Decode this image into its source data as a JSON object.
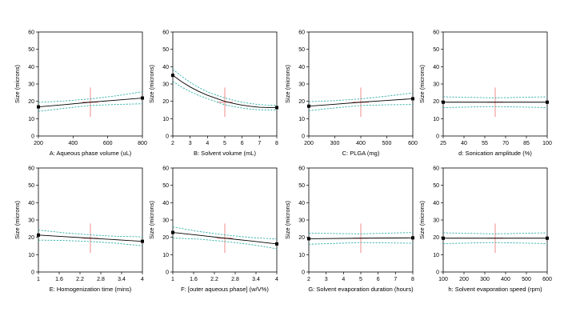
{
  "colors": {
    "fit": "#000000",
    "ci": "#2fb0a8",
    "crosshair": "#f08080",
    "dot": "#000000",
    "axis": "#000000"
  },
  "chart_data": [
    {
      "type": "line",
      "xlabel": "A: Aqueous phase volume (uL)",
      "ylabel": "Size (microns)",
      "xlim": [
        200,
        800
      ],
      "ylim": [
        0,
        60
      ],
      "xticks": [
        "200",
        "400",
        "600",
        "800"
      ],
      "yticks": [
        "0",
        "10",
        "20",
        "30",
        "40",
        "50",
        "60"
      ],
      "center_x": 500,
      "center_y": 19.5,
      "series": [
        {
          "x": [
            200,
            350,
            500,
            650,
            800
          ],
          "y": [
            16.8,
            18.1,
            19.5,
            20.7,
            21.9
          ]
        },
        {
          "x": [
            200,
            350,
            500,
            650,
            800
          ],
          "y": [
            19.4,
            20.2,
            21.4,
            23.2,
            25.5
          ]
        },
        {
          "x": [
            200,
            350,
            500,
            650,
            800
          ],
          "y": [
            14.2,
            16.0,
            17.6,
            18.2,
            18.6
          ]
        }
      ],
      "endpoints": {
        "x": [
          200,
          800
        ],
        "y": [
          16.8,
          21.9
        ]
      }
    },
    {
      "type": "line",
      "xlabel": "B: Solvent volume (mL)",
      "ylabel": "Size (microns)",
      "xlim": [
        2,
        8
      ],
      "ylim": [
        0,
        60
      ],
      "xticks": [
        "2",
        "3",
        "4",
        "5",
        "6",
        "7",
        "8"
      ],
      "yticks": [
        "0",
        "10",
        "20",
        "30",
        "40",
        "50",
        "60"
      ],
      "center_x": 5,
      "center_y": 19.5,
      "series": [
        {
          "x": [
            2,
            2.5,
            3,
            3.5,
            4,
            4.5,
            5,
            5.5,
            6,
            6.5,
            7,
            7.5,
            8
          ],
          "y": [
            35.0,
            31.4,
            28.3,
            25.7,
            23.5,
            21.7,
            20.0,
            18.8,
            17.8,
            17.1,
            16.6,
            16.4,
            16.4
          ]
        },
        {
          "x": [
            2,
            2.5,
            3,
            3.5,
            4,
            4.5,
            5,
            5.5,
            6,
            6.5,
            7,
            7.5,
            8
          ],
          "y": [
            38.5,
            34.5,
            31.0,
            28.0,
            25.5,
            23.6,
            22.0,
            20.6,
            19.5,
            18.7,
            18.1,
            17.8,
            17.7
          ]
        },
        {
          "x": [
            2,
            2.5,
            3,
            3.5,
            4,
            4.5,
            5,
            5.5,
            6,
            6.5,
            7,
            7.5,
            8
          ],
          "y": [
            31.5,
            28.3,
            25.6,
            23.4,
            21.5,
            19.8,
            18.0,
            17.0,
            16.1,
            15.5,
            15.1,
            15.0,
            15.1
          ]
        }
      ],
      "endpoints": {
        "x": [
          2,
          8
        ],
        "y": [
          35.0,
          16.4
        ]
      }
    },
    {
      "type": "line",
      "xlabel": "C: PLGA (mg)",
      "ylabel": "Size (microns)",
      "xlim": [
        200,
        600
      ],
      "ylim": [
        0,
        60
      ],
      "xticks": [
        "200",
        "300",
        "400",
        "500",
        "600"
      ],
      "yticks": [
        "0",
        "10",
        "20",
        "30",
        "40",
        "50",
        "60"
      ],
      "center_x": 400,
      "center_y": 19.5,
      "series": [
        {
          "x": [
            200,
            300,
            400,
            500,
            600
          ],
          "y": [
            17.2,
            18.3,
            19.5,
            20.5,
            21.5
          ]
        },
        {
          "x": [
            200,
            300,
            400,
            500,
            600
          ],
          "y": [
            19.8,
            20.4,
            21.4,
            23.0,
            24.8
          ]
        },
        {
          "x": [
            200,
            300,
            400,
            500,
            600
          ],
          "y": [
            14.6,
            16.2,
            17.6,
            18.0,
            18.2
          ]
        }
      ],
      "endpoints": {
        "x": [
          200,
          600
        ],
        "y": [
          17.2,
          21.5
        ]
      }
    },
    {
      "type": "line",
      "xlabel": "d: Sonication amplitude (%)",
      "ylabel": "Size (microns)",
      "xlim": [
        25,
        100
      ],
      "ylim": [
        0,
        60
      ],
      "xticks": [
        "25",
        "40",
        "55",
        "70",
        "85",
        "100"
      ],
      "yticks": [
        "0",
        "10",
        "20",
        "30",
        "40",
        "50",
        "60"
      ],
      "center_x": 62.5,
      "center_y": 19.5,
      "series": [
        {
          "x": [
            25,
            62.5,
            100
          ],
          "y": [
            19.5,
            19.5,
            19.5
          ]
        },
        {
          "x": [
            25,
            62.5,
            100
          ],
          "y": [
            22.6,
            22.0,
            22.6
          ]
        },
        {
          "x": [
            25,
            62.5,
            100
          ],
          "y": [
            16.4,
            17.0,
            16.4
          ]
        }
      ],
      "endpoints": {
        "x": [
          25,
          100
        ],
        "y": [
          19.5,
          19.5
        ]
      }
    },
    {
      "type": "line",
      "xlabel": "E: Homogenization time (mins)",
      "ylabel": "Size (microns)",
      "xlim": [
        1,
        4
      ],
      "ylim": [
        0,
        60
      ],
      "xticks": [
        "1",
        "1.6",
        "2.2",
        "2.8",
        "3.4",
        "4"
      ],
      "yticks": [
        "0",
        "10",
        "20",
        "30",
        "40",
        "50",
        "60"
      ],
      "center_x": 2.5,
      "center_y": 19.5,
      "series": [
        {
          "x": [
            1,
            1.75,
            2.5,
            3.25,
            4
          ],
          "y": [
            21.3,
            20.4,
            19.5,
            18.6,
            17.7
          ]
        },
        {
          "x": [
            1,
            1.75,
            2.5,
            3.25,
            4
          ],
          "y": [
            24.2,
            22.6,
            21.4,
            20.6,
            20.3
          ]
        },
        {
          "x": [
            1,
            1.75,
            2.5,
            3.25,
            4
          ],
          "y": [
            18.4,
            18.2,
            17.6,
            16.6,
            15.1
          ]
        }
      ],
      "endpoints": {
        "x": [
          1,
          4
        ],
        "y": [
          21.3,
          17.7
        ]
      }
    },
    {
      "type": "line",
      "xlabel": "F: [outer aqueous phase] (w/V%)",
      "ylabel": "Size (microns)",
      "xlim": [
        1,
        4
      ],
      "ylim": [
        0,
        60
      ],
      "xticks": [
        "1",
        "1.6",
        "2.2",
        "2.8",
        "3.4",
        "4"
      ],
      "yticks": [
        "0",
        "10",
        "20",
        "30",
        "40",
        "50",
        "60"
      ],
      "center_x": 2.5,
      "center_y": 19.5,
      "series": [
        {
          "x": [
            1,
            1.75,
            2.5,
            3.25,
            4
          ],
          "y": [
            22.8,
            21.2,
            19.5,
            17.9,
            16.2
          ]
        },
        {
          "x": [
            1,
            1.75,
            2.5,
            3.25,
            4
          ],
          "y": [
            26.0,
            23.4,
            21.4,
            19.9,
            19.0
          ]
        },
        {
          "x": [
            1,
            1.75,
            2.5,
            3.25,
            4
          ],
          "y": [
            19.6,
            19.0,
            17.6,
            15.9,
            13.4
          ]
        }
      ],
      "endpoints": {
        "x": [
          1,
          4
        ],
        "y": [
          22.8,
          16.2
        ]
      }
    },
    {
      "type": "line",
      "xlabel": "G: Solvent evaporation duration (hours)",
      "ylabel": "Size (microns)",
      "xlim": [
        2,
        8
      ],
      "ylim": [
        0,
        60
      ],
      "xticks": [
        "2",
        "3",
        "4",
        "5",
        "6",
        "7",
        "8"
      ],
      "yticks": [
        "0",
        "10",
        "20",
        "30",
        "40",
        "50",
        "60"
      ],
      "center_x": 5,
      "center_y": 19.5,
      "series": [
        {
          "x": [
            2,
            5,
            8
          ],
          "y": [
            19.2,
            19.5,
            19.7
          ]
        },
        {
          "x": [
            2,
            5,
            8
          ],
          "y": [
            22.4,
            22.0,
            22.8
          ]
        },
        {
          "x": [
            2,
            5,
            8
          ],
          "y": [
            16.0,
            17.0,
            16.6
          ]
        }
      ],
      "endpoints": {
        "x": [
          2,
          8
        ],
        "y": [
          19.2,
          19.7
        ]
      }
    },
    {
      "type": "line",
      "xlabel": "h: Solvent evaporation speed (rpm)",
      "ylabel": "Size (microns)",
      "xlim": [
        100,
        600
      ],
      "ylim": [
        0,
        60
      ],
      "xticks": [
        "100",
        "200",
        "300",
        "400",
        "500",
        "600"
      ],
      "yticks": [
        "0",
        "10",
        "20",
        "30",
        "40",
        "50",
        "60"
      ],
      "center_x": 350,
      "center_y": 19.5,
      "series": [
        {
          "x": [
            100,
            350,
            600
          ],
          "y": [
            19.5,
            19.5,
            19.5
          ]
        },
        {
          "x": [
            100,
            350,
            600
          ],
          "y": [
            22.6,
            22.0,
            22.6
          ]
        },
        {
          "x": [
            100,
            350,
            600
          ],
          "y": [
            16.4,
            17.0,
            16.4
          ]
        }
      ],
      "endpoints": {
        "x": [
          100,
          600
        ],
        "y": [
          19.5,
          19.5
        ]
      }
    }
  ]
}
